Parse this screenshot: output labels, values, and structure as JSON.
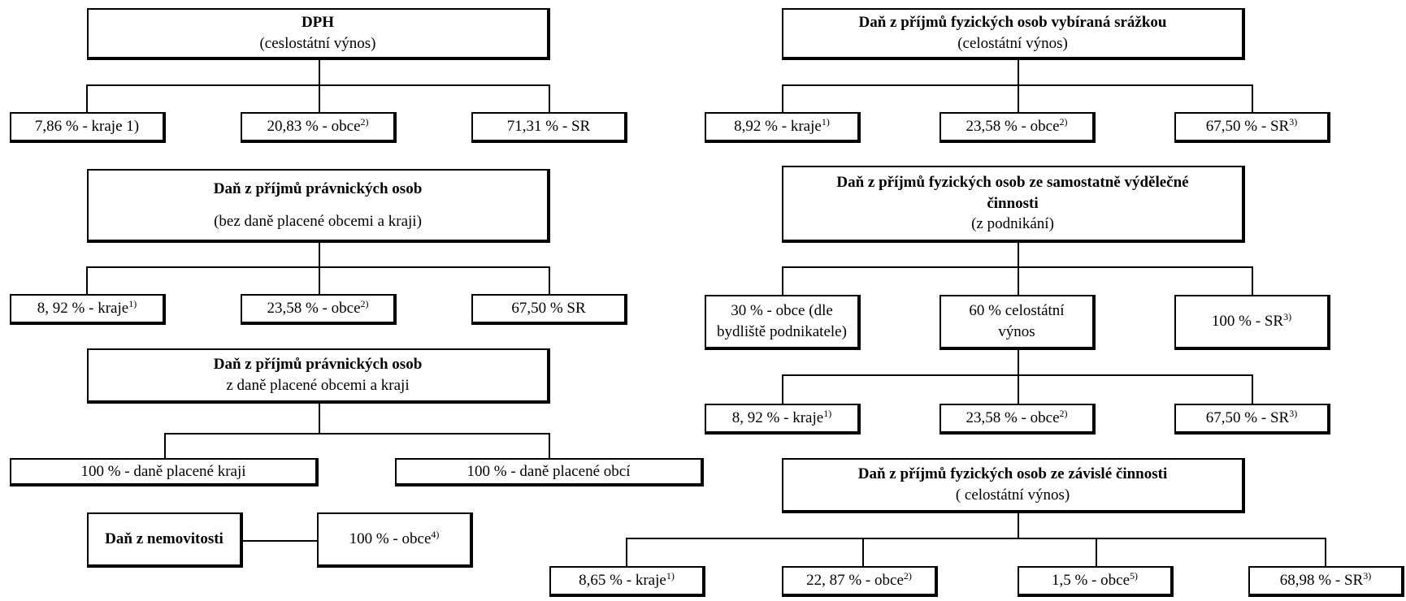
{
  "dph": {
    "title": "DPH",
    "subtitle": "(ceslostátní výnos)",
    "items": [
      {
        "text": "7,86 % - kraje 1)",
        "sup": ""
      },
      {
        "text": "20,83 % - obce",
        "sup": "2)"
      },
      {
        "text": "71,31 % - SR",
        "sup": ""
      }
    ]
  },
  "dppo": {
    "title": "Daň z příjmů právnických osob",
    "subtitle": "(bez daně placené obcemi a kraji)",
    "items": [
      {
        "text": "8, 92 % - kraje",
        "sup": "1)"
      },
      {
        "text": "23,58 % - obce",
        "sup": "2)"
      },
      {
        "text": "67,50 %  SR",
        "sup": ""
      }
    ]
  },
  "dppo_obce_kraje": {
    "title": "Daň z příjmů právnických osob",
    "subtitle": "z daně placené obcemi a kraji",
    "items": [
      {
        "text": "100 % - daně placené kraji"
      },
      {
        "text": "100 % - daně placené obcí"
      }
    ]
  },
  "nemovitosti": {
    "title": "Daň z nemovitosti",
    "item": {
      "text": "100 % - obce",
      "sup": "4)"
    }
  },
  "dpfo_srazka": {
    "title": "Daň z příjmů fyzických osob vybíraná srážkou",
    "subtitle": "(celostátní výnos)",
    "items": [
      {
        "text": "8,92 % - kraje",
        "sup": "1)"
      },
      {
        "text": "23,58 % - obce",
        "sup": "2)"
      },
      {
        "text": "67,50 % - SR",
        "sup": "3)"
      }
    ]
  },
  "dpfo_podnikani": {
    "title_line1": "Daň z příjmů fyzických osob ze samostatně výdělečné",
    "title_line2": "činnosti",
    "subtitle": "(z podnikání)",
    "split": [
      {
        "line1": "30 % - obce (dle",
        "line2": "bydliště podnikatele)"
      },
      {
        "line1": "60 % celostátní",
        "line2": "výnos"
      },
      {
        "text": "100 % - SR",
        "sup": "3)"
      }
    ],
    "items": [
      {
        "text": "8, 92 % - kraje",
        "sup": "1)"
      },
      {
        "text": "23,58 % - obce",
        "sup": "2)"
      },
      {
        "text": "67,50 % - SR",
        "sup": "3)"
      }
    ]
  },
  "dpfo_zavisla": {
    "title": "Daň z příjmů fyzických osob ze závislé činnosti",
    "subtitle": "( celostátní výnos)",
    "items": [
      {
        "text": "8,65 % - kraje",
        "sup": "1)"
      },
      {
        "text": "22, 87 % - obce",
        "sup": "2)"
      },
      {
        "text": "1,5 % - obce",
        "sup": "5)"
      },
      {
        "text": "68,98 % - SR",
        "sup": "3)"
      }
    ]
  }
}
